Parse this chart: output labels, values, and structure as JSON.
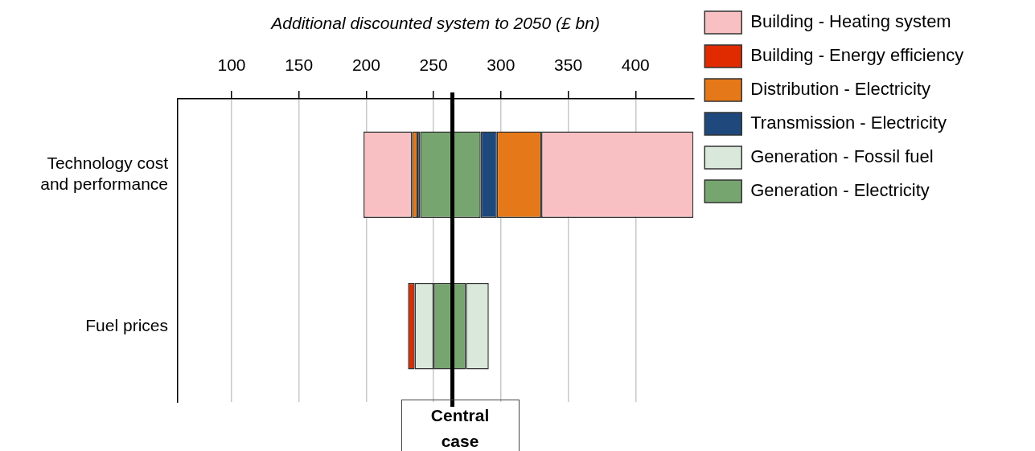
{
  "chart_data": {
    "type": "bar",
    "orientation": "horizontal",
    "xlabel": "Additional discounted system to 2050 (£ bn)",
    "categories": [
      "Technology cost and performance",
      "Fuel prices"
    ],
    "series": [
      {
        "name": "Building - Heating system",
        "color": "#f8c0c2",
        "base": [
          198,
          null
        ],
        "values": [
          36,
          null
        ]
      },
      {
        "name": "Building - Energy efficiency",
        "color": "#e02a00",
        "base": [
          null,
          231
        ],
        "values": [
          null,
          5
        ]
      },
      {
        "name": "Distribution - Electricity",
        "color": "#e57818",
        "base": [
          234,
          null
        ],
        "values": [
          4,
          null
        ]
      },
      {
        "name": "Transmission - Electricity",
        "color": "#1f497d",
        "base": [
          238,
          null
        ],
        "values": [
          2,
          null
        ]
      },
      {
        "name": "Generation - Fossil fuel",
        "color": "#d9e8da",
        "base": [
          null,
          236
        ],
        "values": [
          null,
          14
        ]
      },
      {
        "name": "Generation - Electricity",
        "color": "#76a56f",
        "base": [
          240,
          250
        ],
        "values": [
          45,
          24
        ]
      },
      {
        "color": "#d9e8da",
        "base": [
          null,
          274
        ],
        "values": [
          null,
          17
        ]
      },
      {
        "color": "#1f497d",
        "base": [
          285,
          null
        ],
        "values": [
          12,
          null
        ]
      },
      {
        "color": "#e57818",
        "base": [
          297,
          null
        ],
        "values": [
          33,
          null
        ]
      },
      {
        "color": "#f8c0c2",
        "base": [
          330,
          null
        ],
        "values": [
          113,
          null
        ]
      }
    ],
    "xlim": [
      60,
      443
    ],
    "xticks": [
      100,
      150,
      200,
      250,
      300,
      350,
      400
    ],
    "grid": "x",
    "legend": "top right",
    "ref_lines": [
      {
        "axis": "x",
        "value": 264,
        "label": "Central case",
        "color": "#000000"
      }
    ]
  }
}
